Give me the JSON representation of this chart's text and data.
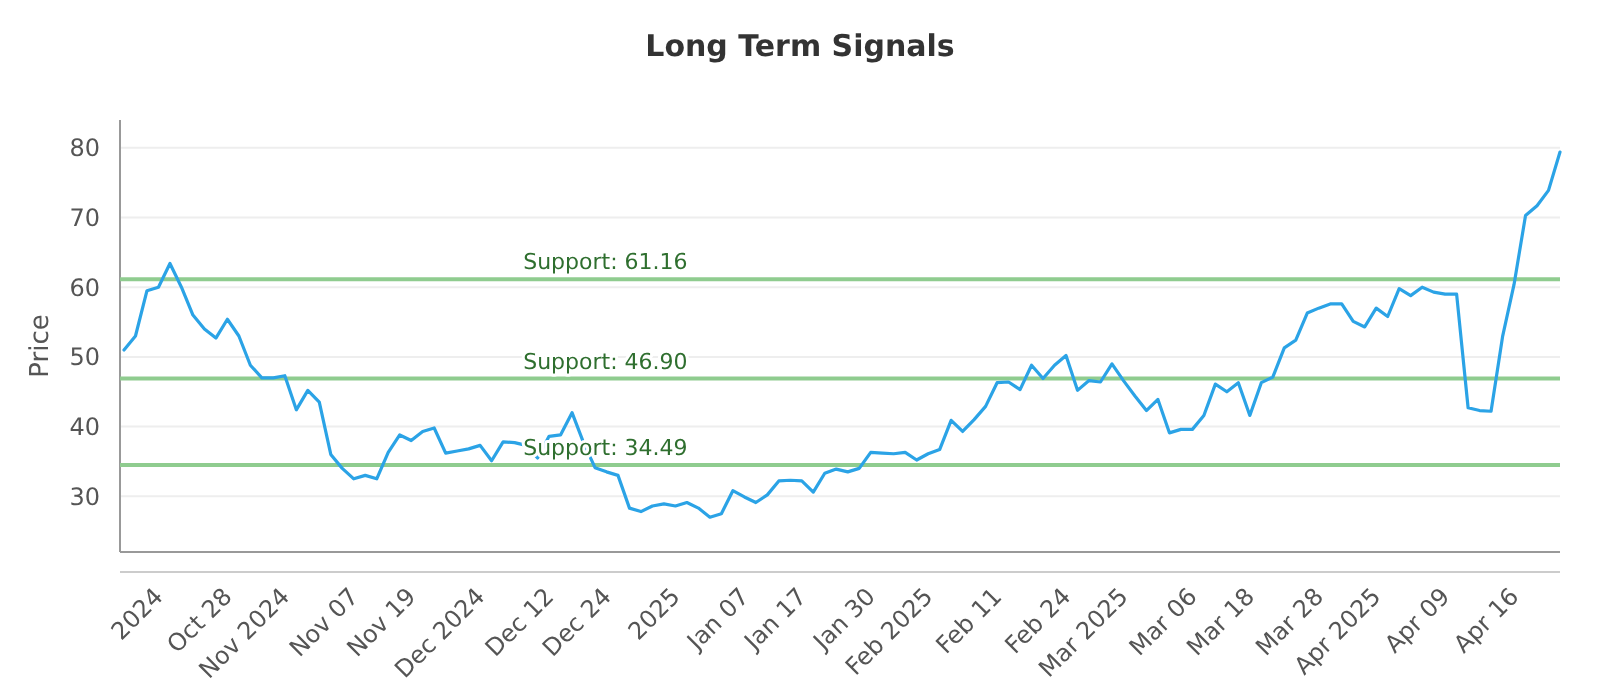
{
  "chart_data": {
    "type": "line",
    "title": "Long Term Signals",
    "ylabel": "Price",
    "categories": [
      null,
      null,
      null,
      "2024",
      null,
      null,
      null,
      null,
      null,
      "Oct 28",
      null,
      null,
      null,
      null,
      "Nov 2024",
      null,
      null,
      null,
      null,
      null,
      "Nov 07",
      null,
      null,
      null,
      null,
      "Nov 19",
      null,
      null,
      null,
      null,
      null,
      "Dec 2024",
      null,
      null,
      null,
      null,
      null,
      "Dec 12",
      null,
      null,
      null,
      null,
      "Dec 24",
      null,
      null,
      null,
      null,
      null,
      "2025",
      null,
      null,
      null,
      null,
      null,
      "Jan 07",
      null,
      null,
      null,
      null,
      "Jan 17",
      null,
      null,
      null,
      null,
      null,
      "Jan 30",
      null,
      null,
      null,
      null,
      "Feb 2025",
      null,
      null,
      null,
      null,
      null,
      "Feb 11",
      null,
      null,
      null,
      null,
      null,
      "Feb 24",
      null,
      null,
      null,
      null,
      "Mar 2025",
      null,
      null,
      null,
      null,
      null,
      "Mar 06",
      null,
      null,
      null,
      null,
      "Mar 18",
      null,
      null,
      null,
      null,
      null,
      "Mar 28",
      null,
      null,
      null,
      null,
      "Apr 2025",
      null,
      null,
      null,
      null,
      null,
      "Apr 09",
      null,
      null,
      null,
      null,
      null,
      "Apr 16",
      null,
      null,
      null,
      null
    ],
    "series": [
      {
        "color": "#2ba3e6",
        "values": [
          51,
          53,
          59.5,
          60,
          63.4,
          60,
          56,
          54,
          52.7,
          55.4,
          53,
          48.8,
          47,
          47,
          47.3,
          42.4,
          45.2,
          43.5,
          36,
          34,
          32.5,
          33,
          32.5,
          36.3,
          38.8,
          38,
          39.3,
          39.8,
          36.2,
          36.5,
          36.8,
          37.3,
          35.1,
          37.8,
          37.7,
          37.3,
          35.5,
          38.6,
          38.8,
          42,
          37.7,
          34.1,
          33.5,
          33,
          28.3,
          27.8,
          28.6,
          28.9,
          28.6,
          29.1,
          28.3,
          27,
          27.5,
          30.8,
          29.9,
          29.1,
          30.2,
          32.2,
          32.3,
          32.2,
          30.6,
          33.3,
          33.9,
          33.5,
          34,
          36.3,
          36.2,
          36.1,
          36.3,
          35.2,
          36.1,
          36.7,
          40.9,
          39.3,
          41,
          42.9,
          46.3,
          46.4,
          45.3,
          48.8,
          46.9,
          48.8,
          50.2,
          45.2,
          46.6,
          46.4,
          49,
          46.6,
          44.4,
          42.3,
          43.9,
          39.1,
          39.6,
          39.6,
          41.6,
          46.1,
          45,
          46.3,
          41.6,
          46.3,
          47.1,
          51.3,
          52.4,
          56.3,
          57,
          57.6,
          57.6,
          55.1,
          54.3,
          57,
          55.8,
          59.8,
          58.8,
          60,
          59.3,
          59,
          59,
          42.7,
          42.3,
          42.2,
          52.9,
          60.4,
          70.3,
          71.7,
          73.9,
          79.4
        ]
      }
    ],
    "ylim": [
      22,
      84
    ],
    "yticks": [
      30,
      40,
      50,
      60,
      70,
      80
    ],
    "grid": "y",
    "marker": "none",
    "line_style": "solid",
    "ref_lines": [
      {
        "axis": "y",
        "value": 61.16,
        "label": "Support: 61.16",
        "color": "#8fcc8f"
      },
      {
        "axis": "y",
        "value": 46.9,
        "label": "Support: 46.90",
        "color": "#8fcc8f"
      },
      {
        "axis": "y",
        "value": 34.49,
        "label": "Support: 34.49",
        "color": "#8fcc8f"
      }
    ]
  }
}
